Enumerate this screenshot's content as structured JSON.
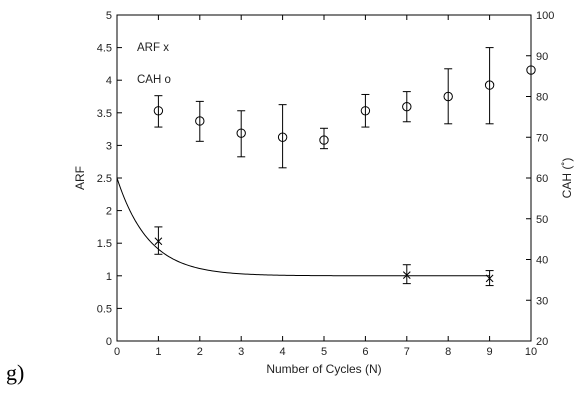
{
  "panel_label": "g)",
  "chart_data": {
    "type": "scatter",
    "xlabel": "Number of Cycles (N)",
    "ylabel_left": "ARF",
    "ylabel_right": "CAH (˚)",
    "xlim": [
      0,
      10
    ],
    "ylim_left": [
      0,
      5
    ],
    "ylim_right": [
      20,
      100
    ],
    "x_ticks": [
      "0",
      "1",
      "2",
      "3",
      "4",
      "5",
      "6",
      "7",
      "8",
      "9",
      "10"
    ],
    "y_left_ticks": [
      "0",
      "0.5",
      "1",
      "1.5",
      "2",
      "2.5",
      "3",
      "3.5",
      "4",
      "4.5",
      "5"
    ],
    "y_right_ticks": [
      "20",
      "30",
      "40",
      "50",
      "60",
      "70",
      "80",
      "90",
      "100"
    ],
    "grid": false,
    "legend": [
      {
        "label": "ARF  x",
        "axis": "left"
      },
      {
        "label": "CAH  o",
        "axis": "right"
      }
    ],
    "series": [
      {
        "axis": "left",
        "marker": "x",
        "points": [
          {
            "x": 1,
            "y": 1.53,
            "err_low": 1.33,
            "err_high": 1.75
          },
          {
            "x": 7,
            "y": 1.01,
            "err_low": 0.88,
            "err_high": 1.17
          },
          {
            "x": 9,
            "y": 0.96,
            "err_low": 0.85,
            "err_high": 1.08
          }
        ]
      },
      {
        "axis": "left",
        "marker": "line",
        "curve": {
          "y0": 2.5,
          "y_inf": 1.0,
          "rate": 1.3
        }
      },
      {
        "axis": "right",
        "marker": "o",
        "points": [
          {
            "x": 1,
            "y": 76.5,
            "err_low": 72.5,
            "err_high": 80.2
          },
          {
            "x": 2,
            "y": 74.0,
            "err_low": 69.0,
            "err_high": 78.8
          },
          {
            "x": 3,
            "y": 71.0,
            "err_low": 65.2,
            "err_high": 76.5
          },
          {
            "x": 4,
            "y": 70.0,
            "err_low": 62.5,
            "err_high": 78.0
          },
          {
            "x": 5,
            "y": 69.3,
            "err_low": 67.2,
            "err_high": 72.2
          },
          {
            "x": 6,
            "y": 76.5,
            "err_low": 72.5,
            "err_high": 80.5
          },
          {
            "x": 7,
            "y": 77.5,
            "err_low": 73.8,
            "err_high": 81.2
          },
          {
            "x": 8,
            "y": 80.0,
            "err_low": 73.3,
            "err_high": 86.8
          },
          {
            "x": 9,
            "y": 82.8,
            "err_low": 73.3,
            "err_high": 92.0
          },
          {
            "x": 10,
            "y": 86.5
          }
        ]
      }
    ]
  }
}
